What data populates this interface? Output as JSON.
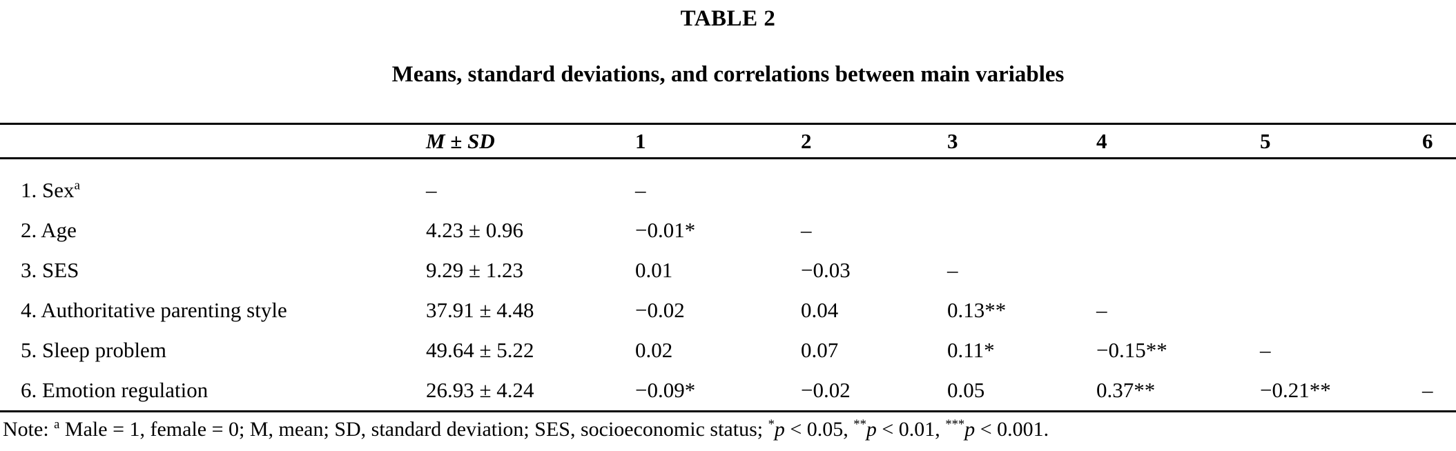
{
  "colors": {
    "text": "#000000",
    "background": "#ffffff",
    "rule": "#000000"
  },
  "table": {
    "title": "TABLE 2",
    "subtitle": "Means, standard deviations, and correlations between main variables",
    "columns": [
      "",
      "M ± SD",
      "1",
      "2",
      "3",
      "4",
      "5",
      "6"
    ],
    "rows": [
      {
        "label": "1. Sex",
        "sup": "a",
        "msd": "–",
        "c1": "–",
        "c2": "",
        "c3": "",
        "c4": "",
        "c5": "",
        "c6": ""
      },
      {
        "label": "2. Age",
        "msd": "4.23 ± 0.96",
        "c1": "−0.01*",
        "c2": "–",
        "c3": "",
        "c4": "",
        "c5": "",
        "c6": ""
      },
      {
        "label": "3. SES",
        "msd": "9.29 ± 1.23",
        "c1": "0.01",
        "c2": "−0.03",
        "c3": "–",
        "c4": "",
        "c5": "",
        "c6": ""
      },
      {
        "label": "4. Authoritative parenting style",
        "msd": "37.91 ± 4.48",
        "c1": "−0.02",
        "c2": "0.04",
        "c3": "0.13**",
        "c4": "–",
        "c5": "",
        "c6": ""
      },
      {
        "label": "5. Sleep problem",
        "msd": "49.64 ± 5.22",
        "c1": "0.02",
        "c2": "0.07",
        "c3": "0.11*",
        "c4": "−0.15**",
        "c5": "–",
        "c6": ""
      },
      {
        "label": "6. Emotion regulation",
        "msd": "26.93 ± 4.24",
        "c1": "−0.09*",
        "c2": "−0.02",
        "c3": "0.05",
        "c4": "0.37**",
        "c5": "−0.21**",
        "c6": "–"
      }
    ],
    "note_parts": [
      {
        "t": "Note: "
      },
      {
        "t": "a",
        "sup": true
      },
      {
        "t": " Male = 1, female = 0; M, mean; SD, standard deviation; SES, socioeconomic status; "
      },
      {
        "t": "*",
        "sup": true
      },
      {
        "t": "p",
        "i": true
      },
      {
        "t": " < 0.05, "
      },
      {
        "t": "**",
        "sup": true
      },
      {
        "t": "p",
        "i": true
      },
      {
        "t": " < 0.01, "
      },
      {
        "t": "***",
        "sup": true
      },
      {
        "t": "p",
        "i": true
      },
      {
        "t": " < 0.001."
      }
    ]
  }
}
